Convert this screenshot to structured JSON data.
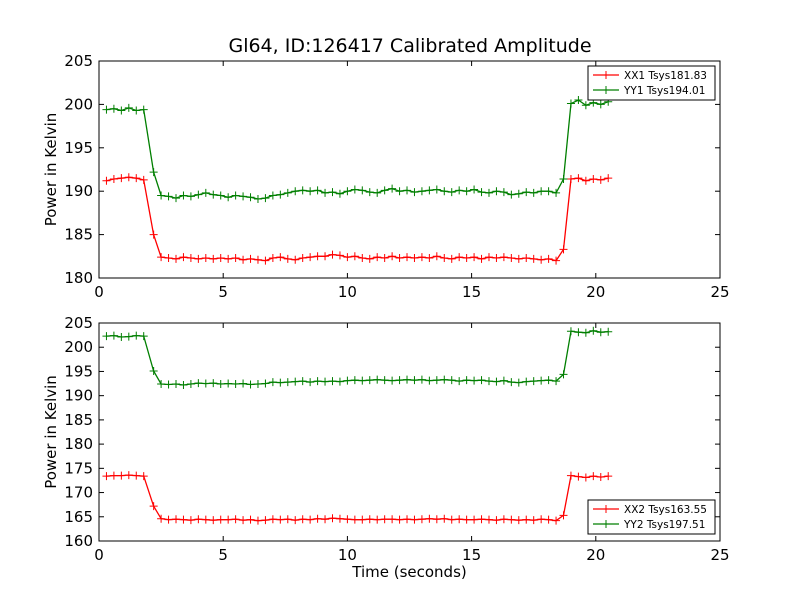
{
  "figure": {
    "title": "Gl64, ID:126417 Calibrated Amplitude"
  },
  "chart_data": [
    {
      "type": "line",
      "title": "Gl64, ID:126417 Calibrated Amplitude",
      "xlabel": "",
      "ylabel": "Power in Kelvin",
      "xlim": [
        0,
        25
      ],
      "ylim": [
        180,
        205
      ],
      "xticks": [
        0,
        5,
        10,
        15,
        20,
        25
      ],
      "yticks": [
        180,
        185,
        190,
        195,
        200,
        205
      ],
      "grid": false,
      "legend_position": "top-right",
      "x": [
        0.3,
        0.6,
        0.9,
        1.2,
        1.5,
        1.8,
        2.2,
        2.5,
        2.8,
        3.1,
        3.4,
        3.7,
        4.0,
        4.3,
        4.6,
        4.9,
        5.2,
        5.5,
        5.8,
        6.1,
        6.4,
        6.7,
        7.0,
        7.3,
        7.6,
        7.9,
        8.2,
        8.5,
        8.8,
        9.1,
        9.4,
        9.7,
        10.0,
        10.3,
        10.6,
        10.9,
        11.2,
        11.5,
        11.8,
        12.1,
        12.4,
        12.7,
        13.0,
        13.3,
        13.6,
        13.9,
        14.2,
        14.5,
        14.8,
        15.1,
        15.4,
        15.7,
        16.0,
        16.3,
        16.6,
        16.9,
        17.2,
        17.5,
        17.8,
        18.1,
        18.4,
        18.7,
        19.0,
        19.3,
        19.6,
        19.9,
        20.2,
        20.5
      ],
      "series": [
        {
          "name": "XX1 Tsys181.83",
          "color": "#ff0000",
          "values": [
            191.2,
            191.4,
            191.5,
            191.6,
            191.5,
            191.3,
            185.0,
            182.4,
            182.3,
            182.2,
            182.4,
            182.3,
            182.2,
            182.3,
            182.2,
            182.3,
            182.2,
            182.3,
            182.1,
            182.2,
            182.1,
            182.0,
            182.3,
            182.4,
            182.2,
            182.1,
            182.3,
            182.4,
            182.5,
            182.5,
            182.7,
            182.6,
            182.4,
            182.5,
            182.3,
            182.2,
            182.4,
            182.3,
            182.5,
            182.3,
            182.4,
            182.3,
            182.4,
            182.3,
            182.5,
            182.3,
            182.2,
            182.4,
            182.3,
            182.4,
            182.2,
            182.4,
            182.3,
            182.4,
            182.3,
            182.2,
            182.3,
            182.2,
            182.1,
            182.2,
            182.0,
            183.3,
            191.4,
            191.5,
            191.2,
            191.4,
            191.3,
            191.5
          ]
        },
        {
          "name": "YY1 Tsys194.01",
          "color": "#007f00",
          "values": [
            199.4,
            199.5,
            199.3,
            199.6,
            199.3,
            199.4,
            192.2,
            189.5,
            189.4,
            189.2,
            189.5,
            189.4,
            189.6,
            189.8,
            189.6,
            189.5,
            189.3,
            189.5,
            189.4,
            189.3,
            189.1,
            189.2,
            189.5,
            189.6,
            189.8,
            190.0,
            190.1,
            190.0,
            190.1,
            189.8,
            189.9,
            189.7,
            190.0,
            190.2,
            190.1,
            189.9,
            189.8,
            190.1,
            190.3,
            190.0,
            190.1,
            189.9,
            190.0,
            190.1,
            190.2,
            190.0,
            189.9,
            190.1,
            190.0,
            190.2,
            189.9,
            189.8,
            190.0,
            189.9,
            189.6,
            189.7,
            189.9,
            189.8,
            190.0,
            190.0,
            189.8,
            191.4,
            200.1,
            200.5,
            199.9,
            200.2,
            200.0,
            200.3
          ]
        }
      ]
    },
    {
      "type": "line",
      "title": "",
      "xlabel": "Time (seconds)",
      "ylabel": "Power in Kelvin",
      "xlim": [
        0,
        25
      ],
      "ylim": [
        160,
        205
      ],
      "xticks": [
        0,
        5,
        10,
        15,
        20,
        25
      ],
      "yticks": [
        160,
        165,
        170,
        175,
        180,
        185,
        190,
        195,
        200,
        205
      ],
      "grid": false,
      "legend_position": "bottom-right",
      "x": [
        0.3,
        0.6,
        0.9,
        1.2,
        1.5,
        1.8,
        2.2,
        2.5,
        2.8,
        3.1,
        3.4,
        3.7,
        4.0,
        4.3,
        4.6,
        4.9,
        5.2,
        5.5,
        5.8,
        6.1,
        6.4,
        6.7,
        7.0,
        7.3,
        7.6,
        7.9,
        8.2,
        8.5,
        8.8,
        9.1,
        9.4,
        9.7,
        10.0,
        10.3,
        10.6,
        10.9,
        11.2,
        11.5,
        11.8,
        12.1,
        12.4,
        12.7,
        13.0,
        13.3,
        13.6,
        13.9,
        14.2,
        14.5,
        14.8,
        15.1,
        15.4,
        15.7,
        16.0,
        16.3,
        16.6,
        16.9,
        17.2,
        17.5,
        17.8,
        18.1,
        18.4,
        18.7,
        19.0,
        19.3,
        19.6,
        19.9,
        20.2,
        20.5
      ],
      "series": [
        {
          "name": "XX2 Tsys163.55",
          "color": "#ff0000",
          "values": [
            173.4,
            173.5,
            173.5,
            173.6,
            173.5,
            173.4,
            167.2,
            164.6,
            164.4,
            164.5,
            164.4,
            164.3,
            164.5,
            164.4,
            164.3,
            164.4,
            164.4,
            164.5,
            164.3,
            164.4,
            164.2,
            164.3,
            164.5,
            164.4,
            164.5,
            164.3,
            164.5,
            164.4,
            164.6,
            164.5,
            164.7,
            164.6,
            164.5,
            164.4,
            164.4,
            164.5,
            164.4,
            164.5,
            164.5,
            164.4,
            164.5,
            164.4,
            164.5,
            164.6,
            164.5,
            164.6,
            164.4,
            164.5,
            164.4,
            164.4,
            164.5,
            164.4,
            164.3,
            164.5,
            164.4,
            164.3,
            164.4,
            164.3,
            164.5,
            164.4,
            164.2,
            165.3,
            173.5,
            173.3,
            173.1,
            173.4,
            173.2,
            173.4
          ]
        },
        {
          "name": "YY2 Tsys197.51",
          "color": "#007f00",
          "values": [
            202.3,
            202.4,
            202.1,
            202.2,
            202.4,
            202.3,
            195.1,
            192.4,
            192.3,
            192.4,
            192.2,
            192.4,
            192.6,
            192.5,
            192.6,
            192.4,
            192.5,
            192.4,
            192.5,
            192.3,
            192.4,
            192.5,
            192.8,
            192.7,
            192.8,
            192.9,
            193.0,
            192.8,
            193.0,
            192.9,
            193.0,
            192.9,
            193.1,
            193.2,
            193.1,
            193.2,
            193.3,
            193.2,
            193.1,
            193.2,
            193.3,
            193.2,
            193.3,
            193.1,
            193.2,
            193.3,
            193.2,
            193.0,
            193.2,
            193.1,
            193.2,
            193.0,
            192.9,
            193.1,
            192.8,
            192.7,
            192.9,
            193.0,
            193.1,
            193.2,
            193.0,
            194.4,
            203.3,
            203.1,
            203.0,
            203.4,
            203.1,
            203.2
          ]
        }
      ]
    }
  ]
}
